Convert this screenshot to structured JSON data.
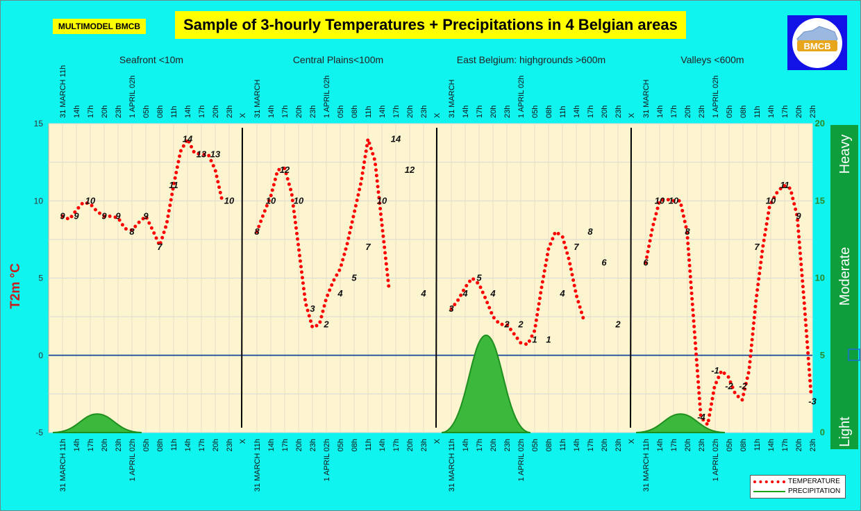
{
  "brand": "MULTIMODEL BMCB",
  "title": "Sample of 3-hourly Temperatures + Precipitations in 4 Belgian areas",
  "logo_text": "BMCB",
  "y_axis_label": "T2m °C",
  "regions": [
    "Seafront <10m",
    "Central Plains<100m",
    "East Belgium:    highgrounds >600m",
    "Valleys <600m"
  ],
  "separator_label": "X",
  "x_tick_labels": [
    "31 MARCH 11h",
    "14h",
    "17h",
    "20h",
    "23h",
    "1 APRIL 02h",
    "05h",
    "08h",
    "11h",
    "14h",
    "17h",
    "20h",
    "23h"
  ],
  "top_tick_labels": [
    "31 MARCH 11h",
    "14h",
    "17h",
    "20h",
    "23h",
    "1 APRIL 02h",
    "05h",
    "08h",
    "11h",
    "14h",
    "17h",
    "20h",
    "23h"
  ],
  "top_tick_labels_last_region": [
    "31 MARCH",
    "14h",
    "17h",
    "20h",
    "23h",
    "1 APRIL 02h",
    "05h",
    "08h",
    "11h",
    "14h",
    "17h",
    "20h",
    "23h"
  ],
  "intensity_labels": [
    "Light",
    "Moderate",
    "Heavy"
  ],
  "legend": {
    "temperature": "TEMPERATURE",
    "precipitation": "PRECIPITATION"
  },
  "colors": {
    "background": "#10f4f0",
    "plot": "#fdf5cf",
    "temperature": "#ff0000",
    "precipitation": "#3cb83c",
    "zero_line": "#2e5c9e",
    "intensity_bar": "#0f9e3c",
    "title_box": "#ffff00",
    "logo_box": "#1212e6"
  },
  "chart_data": {
    "type": "line",
    "ylabel": "T2m °C",
    "ylim": [
      -5,
      15
    ],
    "yticks": [
      -5,
      0,
      5,
      10,
      15
    ],
    "y2lim": [
      0,
      20
    ],
    "y2ticks": [
      0,
      5,
      10,
      15,
      20
    ],
    "grid": true,
    "legend_position": "bottom-right",
    "series": [
      {
        "name": "TEMPERATURE",
        "region": "Seafront <10m",
        "values": [
          9,
          8.8,
          9.4,
          9.9,
          9.8,
          9.3,
          9,
          9,
          8.9,
          8.2,
          8.1,
          8.6,
          9,
          8.1,
          7.1,
          8.5,
          11,
          13.2,
          14,
          13.1,
          13,
          13,
          12,
          10
        ]
      },
      {
        "name": "TEMPERATURE",
        "region": "Central Plains<100m",
        "values": [
          8,
          9.2,
          10.3,
          12,
          12.1,
          10.5,
          7,
          3.4,
          1.8,
          2,
          3.7,
          4.8,
          5.6,
          7.2,
          9.2,
          11.2,
          14,
          12.6,
          8.5,
          4.4
        ]
      },
      {
        "name": "TEMPERATURE",
        "region": "East Belgium:    highgrounds >600m",
        "values": [
          3,
          3.6,
          4.4,
          5,
          4.6,
          3.6,
          2.5,
          2,
          2,
          1.4,
          0.8,
          0.7,
          1.6,
          4.4,
          6.9,
          8,
          7.7,
          6.1,
          3.9,
          2.4
        ]
      },
      {
        "name": "TEMPERATURE",
        "region": "Valleys <600m",
        "values": [
          6,
          8.3,
          10,
          10.1,
          10,
          10,
          8,
          2,
          -4,
          -4.5,
          -2,
          -1,
          -1.4,
          -2.5,
          -2.9,
          -1,
          3.5,
          7,
          9.7,
          10.5,
          11,
          10.8,
          9,
          3.5,
          -2.5
        ]
      }
    ],
    "precipitation": [
      {
        "region": "Seafront <10m",
        "peak": 1.2
      },
      {
        "region": "Central Plains<100m",
        "peak": 0
      },
      {
        "region": "East Belgium:    highgrounds >600m",
        "peak": 6.3
      },
      {
        "region": "Valleys <600m",
        "peak": 1.2
      }
    ],
    "data_labels": [
      [
        "9",
        "9",
        "10",
        "9",
        "9",
        "8",
        "9",
        "7",
        "11",
        "14",
        "13",
        "13",
        "10"
      ],
      [
        "8",
        "10",
        "12",
        "10",
        "3",
        "2",
        "4",
        "5",
        "7",
        "10",
        "14",
        "12",
        "4"
      ],
      [
        "3",
        "4",
        "5",
        "4",
        "2",
        "2",
        "1",
        "1",
        "4",
        "7",
        "8",
        "6",
        "2"
      ],
      [
        "6",
        "10",
        "10",
        "8",
        "-4",
        "-1",
        "-2",
        "-2",
        "7",
        "10",
        "11",
        "9",
        "-3"
      ]
    ]
  }
}
